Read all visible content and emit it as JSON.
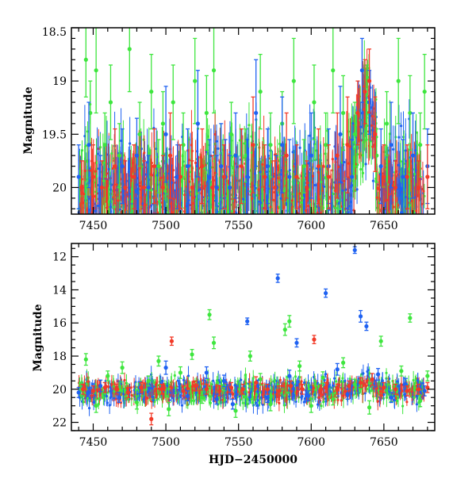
{
  "colors": {
    "green": "#3ee63e",
    "blue": "#1f62f2",
    "red": "#f23a28",
    "axis": "#000000",
    "background": "#ffffff"
  },
  "chart_data": [
    {
      "type": "scatter",
      "panel": "top",
      "title": "",
      "xlabel": "",
      "ylabel": "Magnitude",
      "xlim": [
        7435,
        7685
      ],
      "ylim": [
        20.25,
        18.5
      ],
      "y_inverted": true,
      "xticks": [
        7450,
        7500,
        7550,
        7600,
        7650
      ],
      "xtick_labels": [
        "7450",
        "7500",
        "7550",
        "7600",
        "7650"
      ],
      "yticks": [
        19,
        19.5,
        20
      ],
      "ytick_labels": [
        "18.5",
        "19",
        "19.5",
        "20"
      ],
      "ytick_label_values": [
        18.5,
        19,
        19.5,
        20
      ],
      "error_bars": true,
      "series": [
        {
          "color": "green",
          "x": [
            7445,
            7448,
            7452,
            7458,
            7462,
            7468,
            7475,
            7482,
            7490,
            7495,
            7498,
            7505,
            7512,
            7520,
            7528,
            7533,
            7545,
            7555,
            7565,
            7572,
            7580,
            7588,
            7595,
            7602,
            7610,
            7615,
            7622,
            7630,
            7638,
            7645,
            7652,
            7660,
            7668,
            7675,
            7678
          ],
          "y": [
            18.8,
            19.3,
            18.9,
            19.6,
            19.2,
            19.7,
            18.7,
            19.5,
            19.1,
            19.8,
            19.4,
            19.2,
            19.6,
            19.0,
            19.3,
            18.9,
            19.5,
            19.7,
            19.1,
            19.6,
            19.4,
            19.0,
            19.8,
            19.2,
            19.6,
            18.9,
            19.3,
            19.5,
            19.2,
            19.7,
            19.4,
            19.0,
            19.3,
            19.6,
            19.1
          ],
          "err": [
            0.35,
            0.3,
            0.4,
            0.3,
            0.35,
            0.3,
            0.4,
            0.3,
            0.35,
            0.25,
            0.3,
            0.35,
            0.3,
            0.4,
            0.35,
            0.4,
            0.3,
            0.25,
            0.35,
            0.3,
            0.3,
            0.4,
            0.25,
            0.35,
            0.3,
            0.4,
            0.35,
            0.3,
            0.35,
            0.25,
            0.3,
            0.4,
            0.35,
            0.3,
            0.35
          ]
        },
        {
          "color": "blue",
          "x": [
            7440,
            7447,
            7455,
            7470,
            7480,
            7488,
            7500,
            7508,
            7515,
            7522,
            7530,
            7535,
            7538,
            7541,
            7544,
            7548,
            7556,
            7562,
            7570,
            7576,
            7580,
            7585,
            7600,
            7612,
            7620,
            7628,
            7635,
            7640,
            7648,
            7655,
            7663,
            7670,
            7680
          ],
          "y": [
            19.9,
            19.6,
            20.0,
            19.8,
            19.7,
            20.0,
            19.5,
            19.9,
            19.8,
            19.4,
            19.9,
            20.0,
            19.8,
            19.9,
            20.0,
            19.7,
            19.9,
            19.3,
            19.8,
            20.0,
            19.6,
            19.9,
            19.7,
            19.8,
            19.5,
            19.9,
            18.9,
            19.2,
            19.8,
            19.6,
            19.9,
            19.7,
            19.8
          ],
          "err": [
            0.3,
            0.4,
            0.3,
            0.35,
            0.35,
            0.3,
            0.45,
            0.3,
            0.35,
            0.5,
            0.35,
            0.3,
            0.4,
            0.35,
            0.3,
            0.4,
            0.35,
            0.5,
            0.35,
            0.3,
            0.45,
            0.35,
            0.4,
            0.35,
            0.45,
            0.35,
            0.3,
            0.3,
            0.35,
            0.4,
            0.35,
            0.4,
            0.35
          ]
        },
        {
          "color": "red",
          "x": [
            7442,
            7450,
            7456,
            7465,
            7472,
            7478,
            7485,
            7492,
            7498,
            7503,
            7510,
            7518,
            7525,
            7532,
            7540,
            7552,
            7560,
            7568,
            7575,
            7583,
            7590,
            7597,
            7605,
            7612,
            7618,
            7625,
            7632,
            7637,
            7640,
            7644,
            7650,
            7658,
            7666,
            7674,
            7680
          ],
          "y": [
            20.0,
            19.9,
            20.0,
            19.8,
            20.0,
            19.9,
            20.0,
            19.8,
            20.0,
            19.7,
            19.9,
            20.0,
            19.8,
            20.0,
            19.9,
            19.8,
            19.6,
            19.9,
            20.0,
            19.7,
            19.9,
            20.0,
            19.8,
            19.9,
            19.7,
            19.6,
            19.3,
            19.1,
            19.0,
            19.5,
            19.9,
            20.0,
            19.9,
            20.0,
            19.9
          ],
          "err": [
            0.25,
            0.3,
            0.25,
            0.35,
            0.25,
            0.3,
            0.25,
            0.35,
            0.3,
            0.4,
            0.3,
            0.25,
            0.35,
            0.3,
            0.3,
            0.35,
            0.45,
            0.3,
            0.25,
            0.4,
            0.3,
            0.25,
            0.35,
            0.3,
            0.4,
            0.45,
            0.3,
            0.3,
            0.3,
            0.35,
            0.3,
            0.25,
            0.3,
            0.25,
            0.3
          ]
        }
      ]
    },
    {
      "type": "scatter",
      "panel": "bottom",
      "title": "",
      "xlabel": "HJD−2450000",
      "ylabel": "Magnitude",
      "xlim": [
        7435,
        7685
      ],
      "ylim": [
        22.5,
        11.2
      ],
      "y_inverted": true,
      "xticks": [
        7450,
        7500,
        7550,
        7600,
        7650
      ],
      "xtick_labels": [
        "7450",
        "7500",
        "7550",
        "7600",
        "7650"
      ],
      "yticks": [
        12,
        14,
        16,
        18,
        20,
        22
      ],
      "ytick_labels": [
        "12",
        "14",
        "16",
        "18",
        "20",
        "22"
      ],
      "error_bars": true,
      "series": [
        {
          "color": "green",
          "x": [
            7445,
            7452,
            7460,
            7470,
            7480,
            7488,
            7495,
            7502,
            7510,
            7518,
            7525,
            7530,
            7533,
            7540,
            7548,
            7558,
            7565,
            7572,
            7582,
            7585,
            7592,
            7600,
            7608,
            7615,
            7622,
            7630,
            7640,
            7648,
            7655,
            7662,
            7668,
            7675,
            7680
          ],
          "y": [
            18.2,
            21.0,
            19.2,
            18.7,
            20.8,
            19.5,
            18.3,
            21.2,
            19.0,
            17.9,
            20.5,
            15.5,
            17.2,
            19.8,
            21.3,
            18.0,
            19.4,
            20.9,
            16.4,
            15.9,
            18.6,
            21.0,
            19.3,
            20.6,
            18.4,
            19.7,
            21.1,
            17.1,
            20.4,
            18.9,
            15.7,
            20.7,
            19.2
          ],
          "err": [
            0.35,
            0.4,
            0.3,
            0.35,
            0.4,
            0.3,
            0.3,
            0.4,
            0.35,
            0.3,
            0.35,
            0.3,
            0.35,
            0.3,
            0.4,
            0.3,
            0.35,
            0.4,
            0.35,
            0.35,
            0.3,
            0.4,
            0.35,
            0.35,
            0.3,
            0.3,
            0.4,
            0.3,
            0.35,
            0.3,
            0.25,
            0.35,
            0.3
          ]
        },
        {
          "color": "blue",
          "x": [
            7440,
            7455,
            7468,
            7482,
            7500,
            7515,
            7528,
            7535,
            7540,
            7546,
            7556,
            7563,
            7570,
            7577,
            7585,
            7590,
            7598,
            7610,
            7618,
            7625,
            7630,
            7634,
            7638,
            7646,
            7655,
            7665,
            7678
          ],
          "y": [
            20.2,
            19.8,
            20.5,
            19.9,
            18.7,
            20.4,
            19.0,
            20.6,
            19.5,
            20.9,
            15.9,
            19.8,
            20.5,
            13.3,
            19.2,
            17.2,
            20.4,
            14.2,
            18.8,
            20.3,
            11.6,
            15.6,
            16.2,
            19.1,
            20.5,
            19.7,
            20.1
          ],
          "err": [
            0.3,
            0.35,
            0.3,
            0.35,
            0.4,
            0.3,
            0.35,
            0.3,
            0.35,
            0.3,
            0.2,
            0.35,
            0.3,
            0.25,
            0.35,
            0.25,
            0.3,
            0.25,
            0.35,
            0.3,
            0.2,
            0.35,
            0.25,
            0.35,
            0.3,
            0.35,
            0.3
          ]
        },
        {
          "color": "red",
          "x": [
            7443,
            7450,
            7458,
            7466,
            7474,
            7483,
            7490,
            7497,
            7504,
            7512,
            7520,
            7528,
            7537,
            7545,
            7553,
            7562,
            7570,
            7578,
            7586,
            7594,
            7602,
            7610,
            7618,
            7626,
            7634,
            7642,
            7650,
            7658,
            7666,
            7674,
            7680
          ],
          "y": [
            20.0,
            20.1,
            19.9,
            20.0,
            20.2,
            19.9,
            21.8,
            20.0,
            17.1,
            20.1,
            19.8,
            20.0,
            20.1,
            19.9,
            20.0,
            19.6,
            20.0,
            20.1,
            19.8,
            20.0,
            17.0,
            19.9,
            20.0,
            19.8,
            19.6,
            19.4,
            19.9,
            20.0,
            20.1,
            20.0,
            19.9
          ],
          "err": [
            0.3,
            0.3,
            0.3,
            0.3,
            0.3,
            0.3,
            0.35,
            0.3,
            0.25,
            0.3,
            0.3,
            0.3,
            0.3,
            0.3,
            0.3,
            0.35,
            0.3,
            0.3,
            0.3,
            0.3,
            0.25,
            0.3,
            0.3,
            0.3,
            0.3,
            0.35,
            0.3,
            0.3,
            0.3,
            0.3,
            0.3
          ]
        }
      ]
    }
  ]
}
